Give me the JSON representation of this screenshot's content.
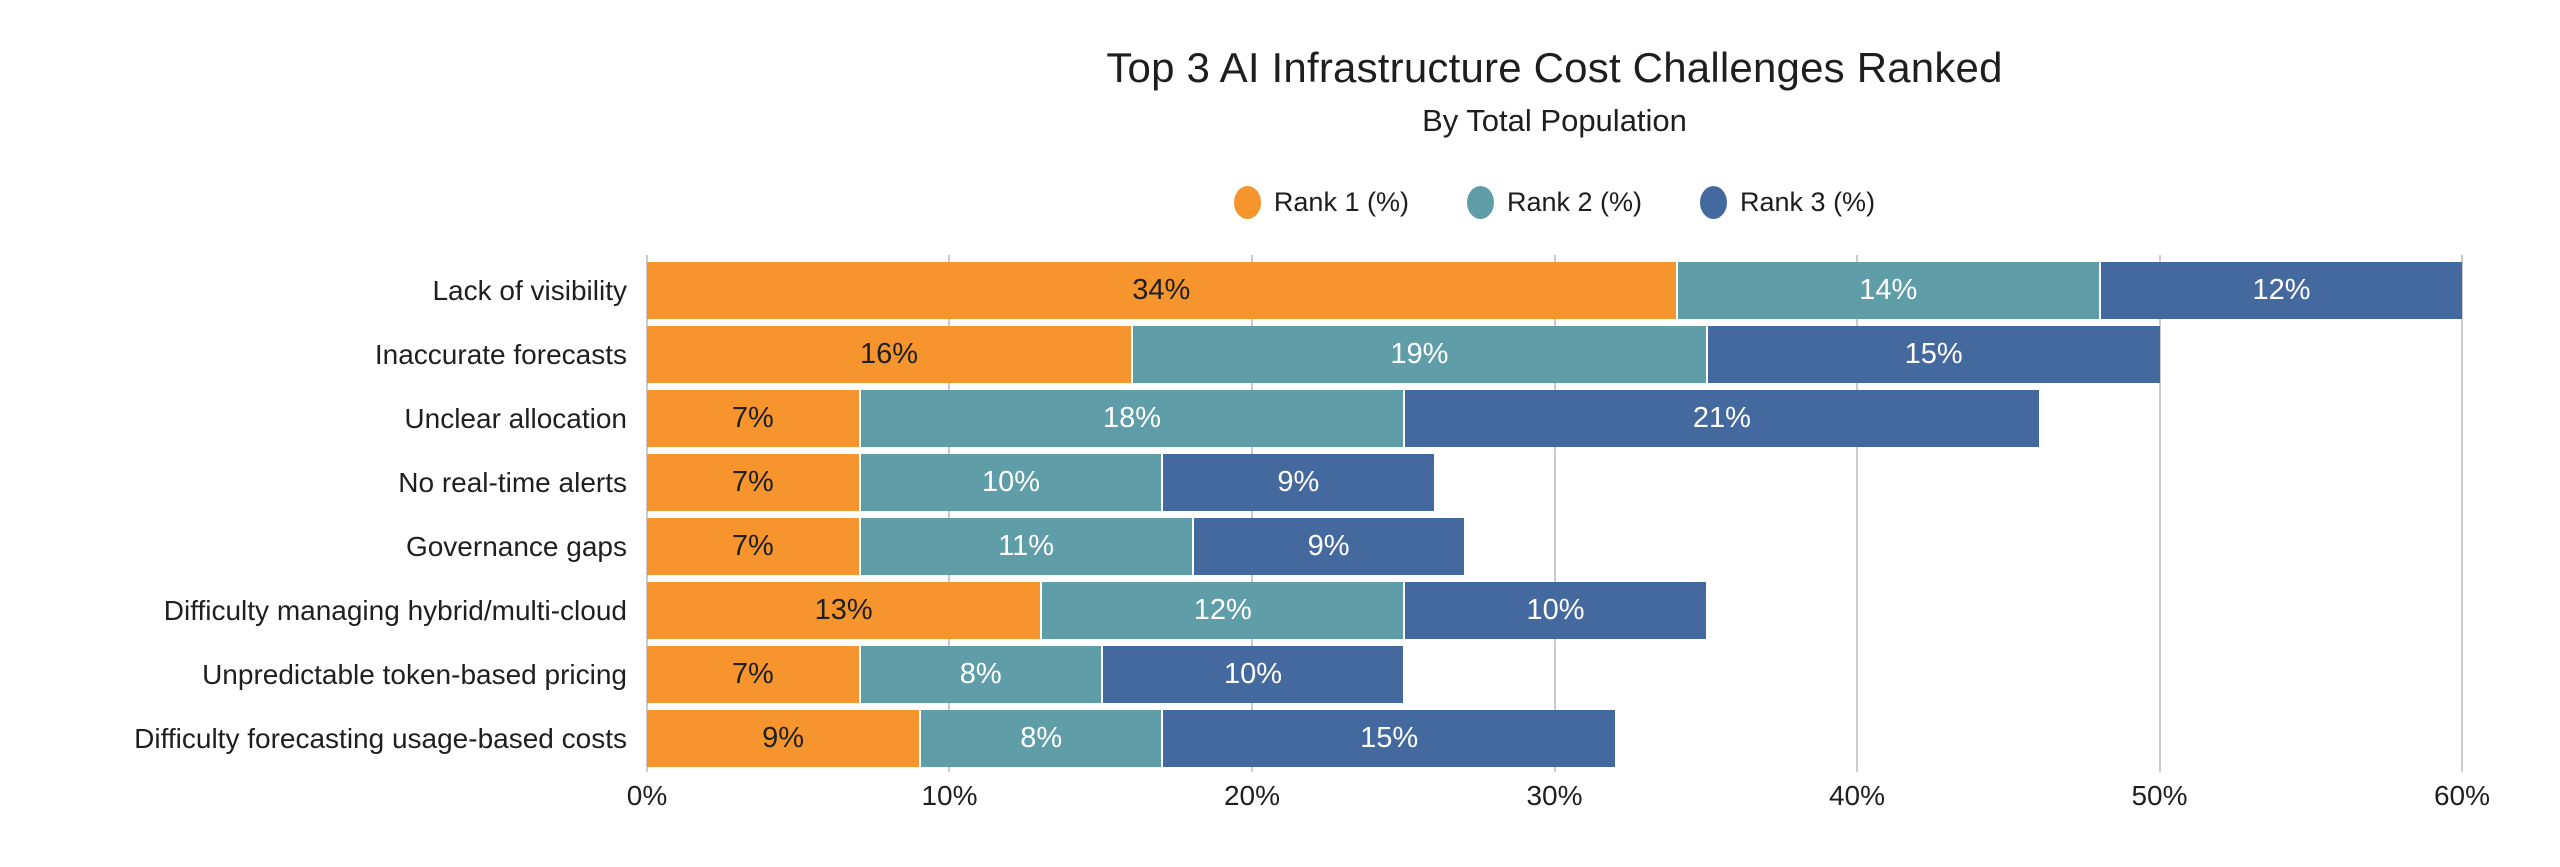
{
  "page": {
    "background": "#FFFFFF"
  },
  "chart_data": {
    "type": "bar",
    "orientation": "horizontal",
    "stacked": true,
    "title": "Top 3 AI Infrastructure Cost Challenges Ranked",
    "subtitle": "By Total Population",
    "categories": [
      "Lack of visibility",
      "Inaccurate forecasts",
      "Unclear allocation",
      "No real-time alerts",
      "Governance gaps",
      "Difficulty managing hybrid/multi-cloud",
      "Unpredictable token-based pricing",
      "Difficulty forecasting usage-based costs"
    ],
    "series": [
      {
        "name": "Rank 1 (%)",
        "color": "#F6952D",
        "label_color": "#1F1F1F",
        "values": [
          34,
          16,
          7,
          7,
          7,
          13,
          7,
          9
        ]
      },
      {
        "name": "Rank 2 (%)",
        "color": "#5F9DA9",
        "label_color": "#FFFFFF",
        "values": [
          14,
          19,
          18,
          10,
          11,
          12,
          8,
          8
        ]
      },
      {
        "name": "Rank 3 (%)",
        "color": "#44699E",
        "label_color": "#FFFFFF",
        "values": [
          12,
          15,
          21,
          9,
          9,
          10,
          10,
          15
        ]
      }
    ],
    "totals": [
      60,
      50,
      46,
      26,
      27,
      35,
      25,
      32
    ],
    "value_suffix": "%",
    "xlim": [
      0,
      60
    ],
    "x_ticks": [
      "0%",
      "10%",
      "20%",
      "30%",
      "40%",
      "50%",
      "60%"
    ],
    "x_tick_values": [
      0,
      10,
      20,
      30,
      40,
      50,
      60
    ],
    "grid": true,
    "gridline_color": "#CBCBCB",
    "legend_position": "top",
    "legend_entries": [
      "Rank 1 (%)",
      "Rank 2 (%)",
      "Rank 3 (%)"
    ]
  }
}
